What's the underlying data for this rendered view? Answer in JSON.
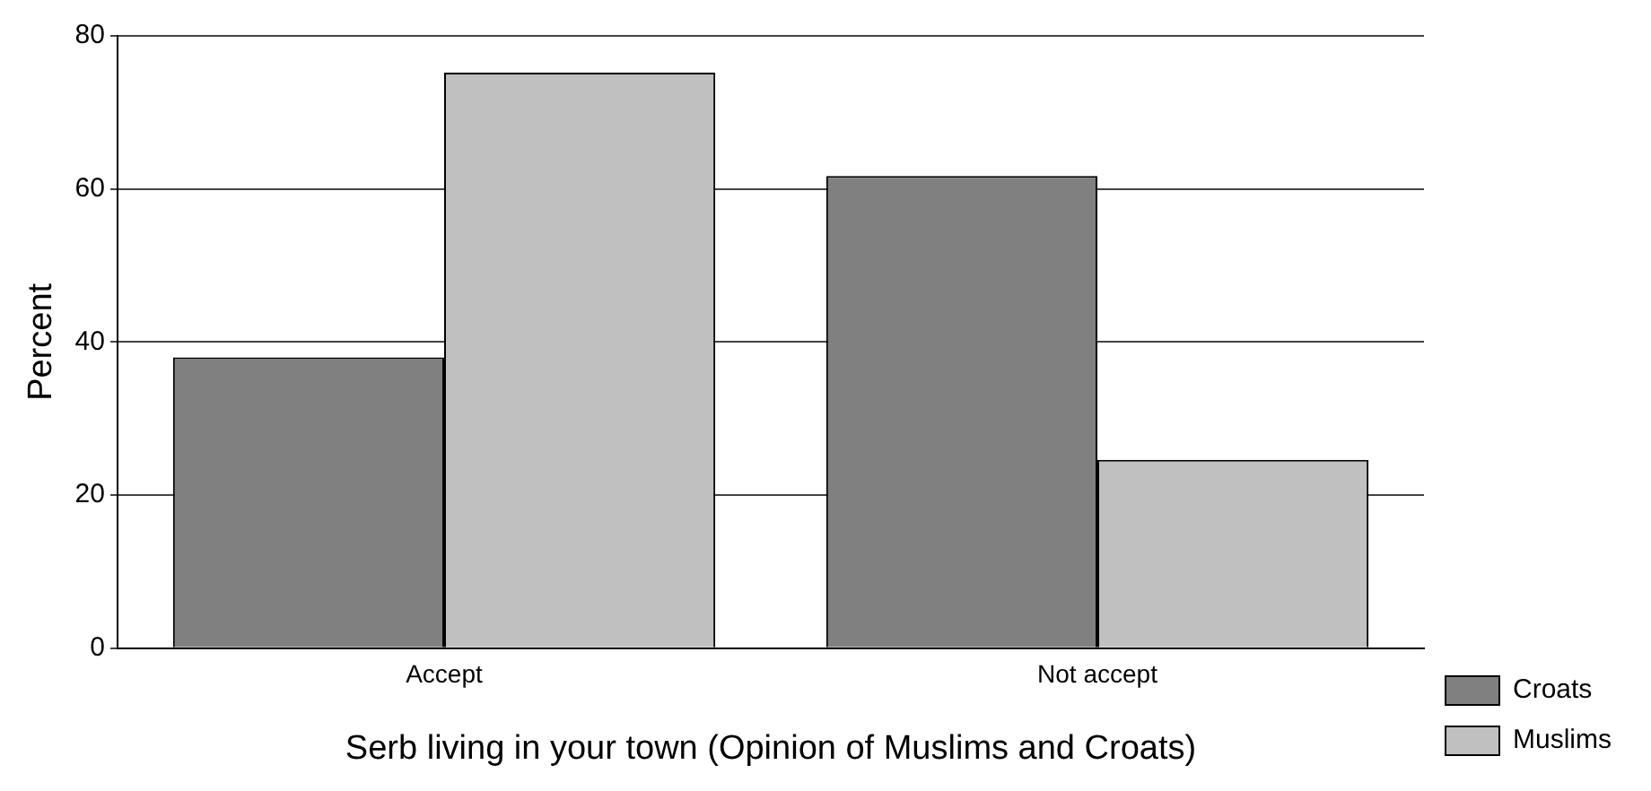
{
  "chart_data": {
    "type": "bar",
    "xlabel": "Serb living in your town (Opinion of Muslims and Croats)",
    "ylabel": "Percent",
    "categories": [
      "Accept",
      "Not accept"
    ],
    "series": [
      {
        "name": "Croats",
        "color": "#808080",
        "values": [
          38.0,
          61.7
        ]
      },
      {
        "name": "Muslims",
        "color": "#c0c0c0",
        "values": [
          75.2,
          24.6
        ]
      }
    ],
    "ylim": [
      0,
      80
    ],
    "yticks": [
      0,
      20,
      40,
      60,
      80
    ],
    "grid": "y",
    "legend": "bottom right"
  }
}
